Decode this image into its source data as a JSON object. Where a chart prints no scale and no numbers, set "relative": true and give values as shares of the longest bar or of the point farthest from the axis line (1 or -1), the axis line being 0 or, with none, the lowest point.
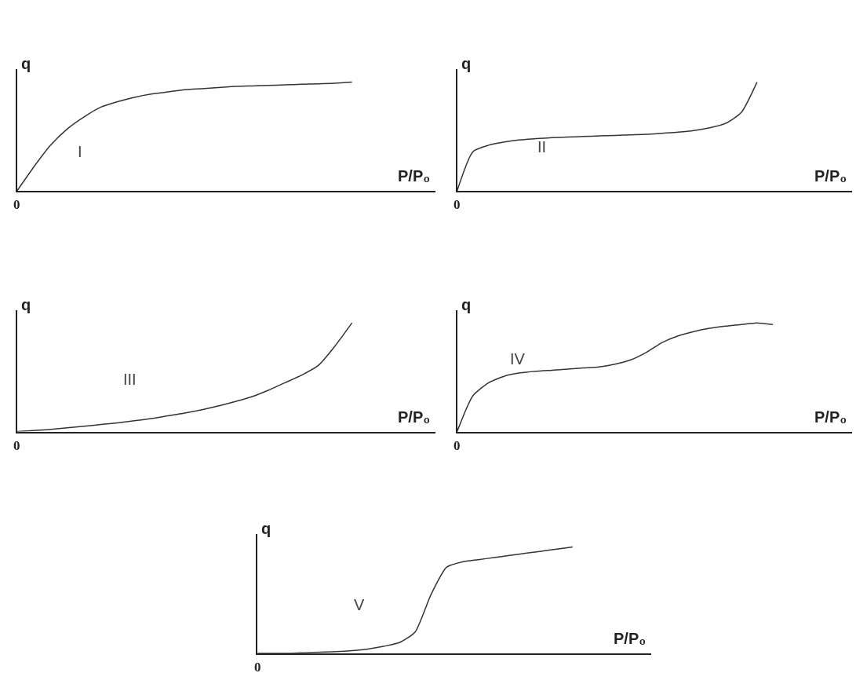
{
  "chart_data": [
    {
      "type": "line",
      "relative": true,
      "xlabel": "P/P₀",
      "ylabel": "q",
      "marker": "none",
      "line_style": "solid",
      "categories": [
        null,
        null,
        null,
        null,
        null,
        null,
        null,
        null,
        null,
        null,
        null,
        null,
        null,
        null,
        null,
        null,
        null,
        null,
        null,
        null,
        null,
        null,
        null,
        null,
        null,
        null
      ],
      "series": [
        {
          "color": "#333333",
          "values": [
            0,
            0.22,
            0.42,
            0.57,
            0.68,
            0.77,
            0.82,
            0.86,
            0.89,
            0.91,
            0.93,
            0.94,
            0.95,
            0.96,
            0.965,
            0.97,
            0.975,
            0.98,
            0.985,
            0.99,
            1,
            null,
            null,
            null,
            null,
            null
          ]
        }
      ],
      "annotations": [
        "I",
        "0"
      ]
    },
    {
      "type": "line",
      "relative": true,
      "xlabel": "P/P₀",
      "ylabel": "q",
      "marker": "none",
      "line_style": "solid",
      "categories": [
        null,
        null,
        null,
        null,
        null,
        null,
        null,
        null,
        null,
        null,
        null,
        null,
        null,
        null,
        null,
        null,
        null,
        null,
        null,
        null,
        null,
        null,
        null,
        null,
        null,
        null
      ],
      "series": [
        {
          "color": "#333333",
          "values": [
            0,
            0.36,
            0.42,
            0.45,
            0.47,
            0.48,
            0.49,
            0.495,
            0.5,
            0.505,
            0.51,
            0.515,
            0.52,
            0.53,
            0.54,
            0.555,
            0.58,
            0.62,
            0.72,
            1,
            null,
            null,
            null,
            null,
            null,
            null
          ]
        }
      ],
      "annotations": [
        "II",
        "0"
      ]
    },
    {
      "type": "line",
      "relative": true,
      "xlabel": "P/P₀",
      "ylabel": "q",
      "marker": "none",
      "line_style": "solid",
      "categories": [
        null,
        null,
        null,
        null,
        null,
        null,
        null,
        null,
        null,
        null,
        null,
        null,
        null,
        null,
        null,
        null,
        null,
        null,
        null,
        null,
        null,
        null,
        null,
        null,
        null,
        null
      ],
      "series": [
        {
          "color": "#333333",
          "values": [
            0,
            0.01,
            0.02,
            0.035,
            0.05,
            0.065,
            0.08,
            0.1,
            0.12,
            0.145,
            0.17,
            0.2,
            0.235,
            0.275,
            0.32,
            0.38,
            0.45,
            0.52,
            0.61,
            0.79,
            1,
            null,
            null,
            null,
            null,
            null
          ]
        }
      ],
      "annotations": [
        "III",
        "0"
      ]
    },
    {
      "type": "line",
      "relative": true,
      "xlabel": "P/P₀",
      "ylabel": "q",
      "marker": "none",
      "line_style": "solid",
      "categories": [
        null,
        null,
        null,
        null,
        null,
        null,
        null,
        null,
        null,
        null,
        null,
        null,
        null,
        null,
        null,
        null,
        null,
        null,
        null,
        null,
        null,
        null,
        null,
        null,
        null,
        null
      ],
      "series": [
        {
          "color": "#333333",
          "values": [
            0,
            0.33,
            0.45,
            0.51,
            0.54,
            0.555,
            0.565,
            0.575,
            0.585,
            0.595,
            0.62,
            0.66,
            0.73,
            0.82,
            0.88,
            0.92,
            0.95,
            0.97,
            0.985,
            1,
            0.985,
            null,
            null,
            null,
            null,
            null
          ]
        }
      ],
      "annotations": [
        "IV",
        "0"
      ]
    },
    {
      "type": "line",
      "relative": true,
      "xlabel": "P/P₀",
      "ylabel": "q",
      "marker": "none",
      "line_style": "solid",
      "categories": [
        null,
        null,
        null,
        null,
        null,
        null,
        null,
        null,
        null,
        null,
        null,
        null,
        null,
        null,
        null,
        null,
        null,
        null,
        null,
        null,
        null,
        null,
        null,
        null,
        null,
        null
      ],
      "series": [
        {
          "color": "#333333",
          "values": [
            0,
            0,
            0,
            0.005,
            0.01,
            0.015,
            0.025,
            0.04,
            0.065,
            0.1,
            0.2,
            0.55,
            0.81,
            0.86,
            0.88,
            0.9,
            0.92,
            0.94,
            0.96,
            0.98,
            1,
            null,
            null,
            null,
            null,
            null
          ]
        }
      ],
      "annotations": [
        "V",
        "0"
      ]
    }
  ]
}
